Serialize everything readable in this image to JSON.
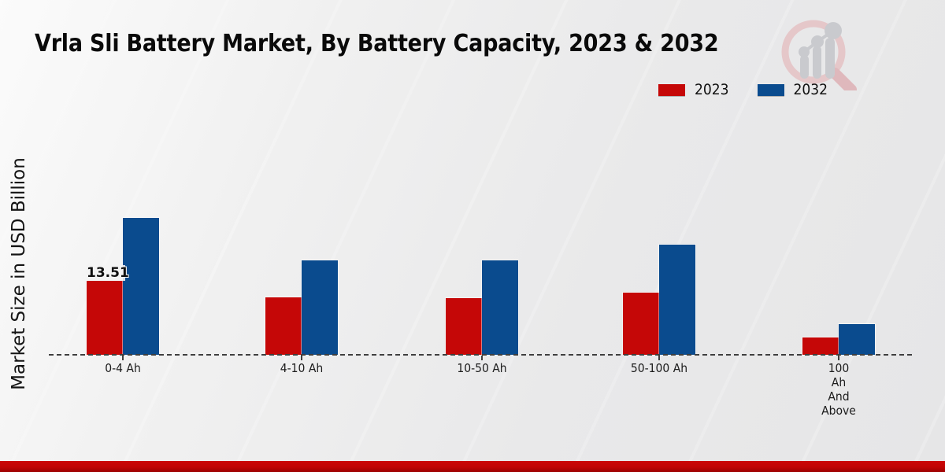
{
  "page": {
    "title": "Vrla Sli Battery Market, By Battery Capacity, 2023 & 2032"
  },
  "legend": {
    "items": [
      {
        "label": "2023",
        "color": "#c50707"
      },
      {
        "label": "2032",
        "color": "#0a4b8e"
      }
    ]
  },
  "y_axis": {
    "label": "Market Size in USD Billion"
  },
  "chart_data": {
    "type": "bar",
    "title": "Vrla Sli Battery Market, By Battery Capacity, 2023 & 2032",
    "xlabel": "",
    "ylabel": "Market Size in USD Billion",
    "units": "USD Billion",
    "categories": [
      "0-4 Ah",
      "4-10 Ah",
      "10-50 Ah",
      "50-100 Ah",
      "100 Ah And Above"
    ],
    "category_display_lines": [
      [
        "0-4 Ah"
      ],
      [
        "4-10 Ah"
      ],
      [
        "10-50 Ah"
      ],
      [
        "50-100 Ah"
      ],
      [
        "100",
        "Ah",
        "And",
        "Above"
      ]
    ],
    "series": [
      {
        "name": "2023",
        "color": "#c50707",
        "values": [
          13.51,
          10.5,
          10.3,
          11.4,
          3.1
        ],
        "data_labels": [
          "13.51",
          "",
          "",
          "",
          ""
        ]
      },
      {
        "name": "2032",
        "color": "#0a4b8e",
        "values": [
          25.0,
          17.2,
          17.2,
          20.1,
          5.6
        ],
        "data_labels": [
          "",
          "",
          "",
          "",
          ""
        ]
      }
    ],
    "ylim": [
      0,
      28
    ],
    "grid": false,
    "baseline_style": "dashed",
    "legend_position": "top-right"
  },
  "watermark": {
    "icon": "magnifier-growth-chart-logo"
  },
  "colors": {
    "bar_2023": "#c50707",
    "bar_2032": "#0a4b8e",
    "baseline": "#3f3f3f",
    "footer_strip": "#c10505",
    "ring_pink": "#e5bfc2",
    "handle_pink": "#ddadb1",
    "logo_gray": "#c2c3c8"
  }
}
